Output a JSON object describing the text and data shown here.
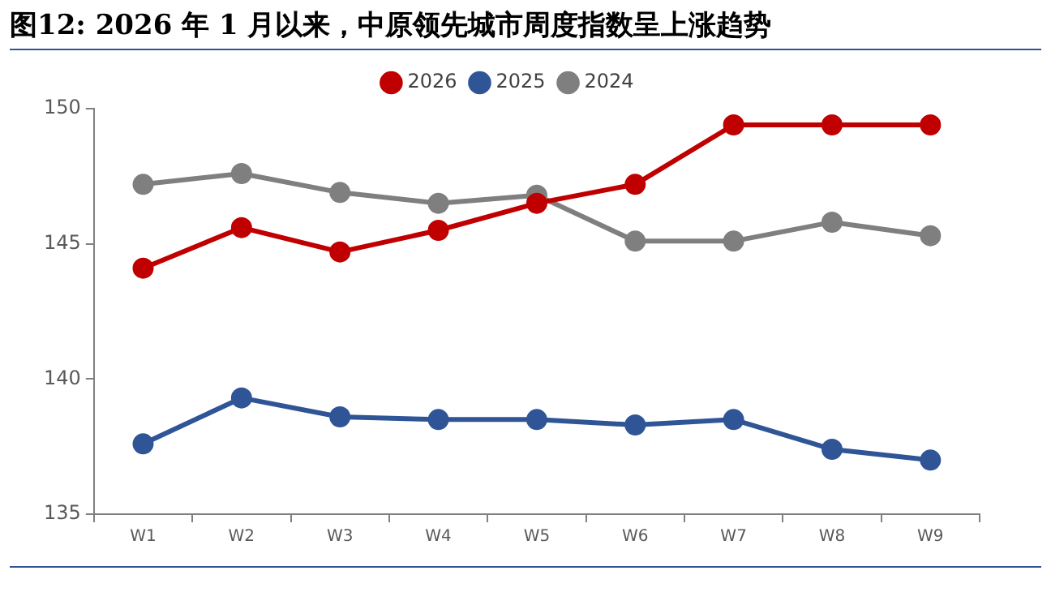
{
  "chart_data": {
    "type": "line",
    "title": "图12: 2026 年 1 月以来，中原领先城市周度指数呈上涨趋势",
    "categories": [
      "W1",
      "W2",
      "W3",
      "W4",
      "W5",
      "W6",
      "W7",
      "W8",
      "W9"
    ],
    "series": [
      {
        "name": "2024",
        "color": "#7f7f7f",
        "values": [
          147.2,
          147.6,
          146.9,
          146.5,
          146.8,
          145.1,
          145.1,
          145.8,
          145.3
        ]
      },
      {
        "name": "2025",
        "color": "#2f5597",
        "values": [
          137.6,
          139.3,
          138.6,
          138.5,
          138.5,
          138.3,
          138.5,
          137.4,
          137.0
        ]
      },
      {
        "name": "2026",
        "color": "#c00000",
        "values": [
          144.1,
          145.6,
          144.7,
          145.5,
          146.5,
          147.2,
          149.4,
          149.4,
          149.4
        ]
      }
    ],
    "ylim": [
      135,
      150
    ],
    "yticks": [
      135,
      140,
      145,
      150
    ],
    "grid": false,
    "legend": "top",
    "marker": "circle",
    "line_style": "solid"
  }
}
